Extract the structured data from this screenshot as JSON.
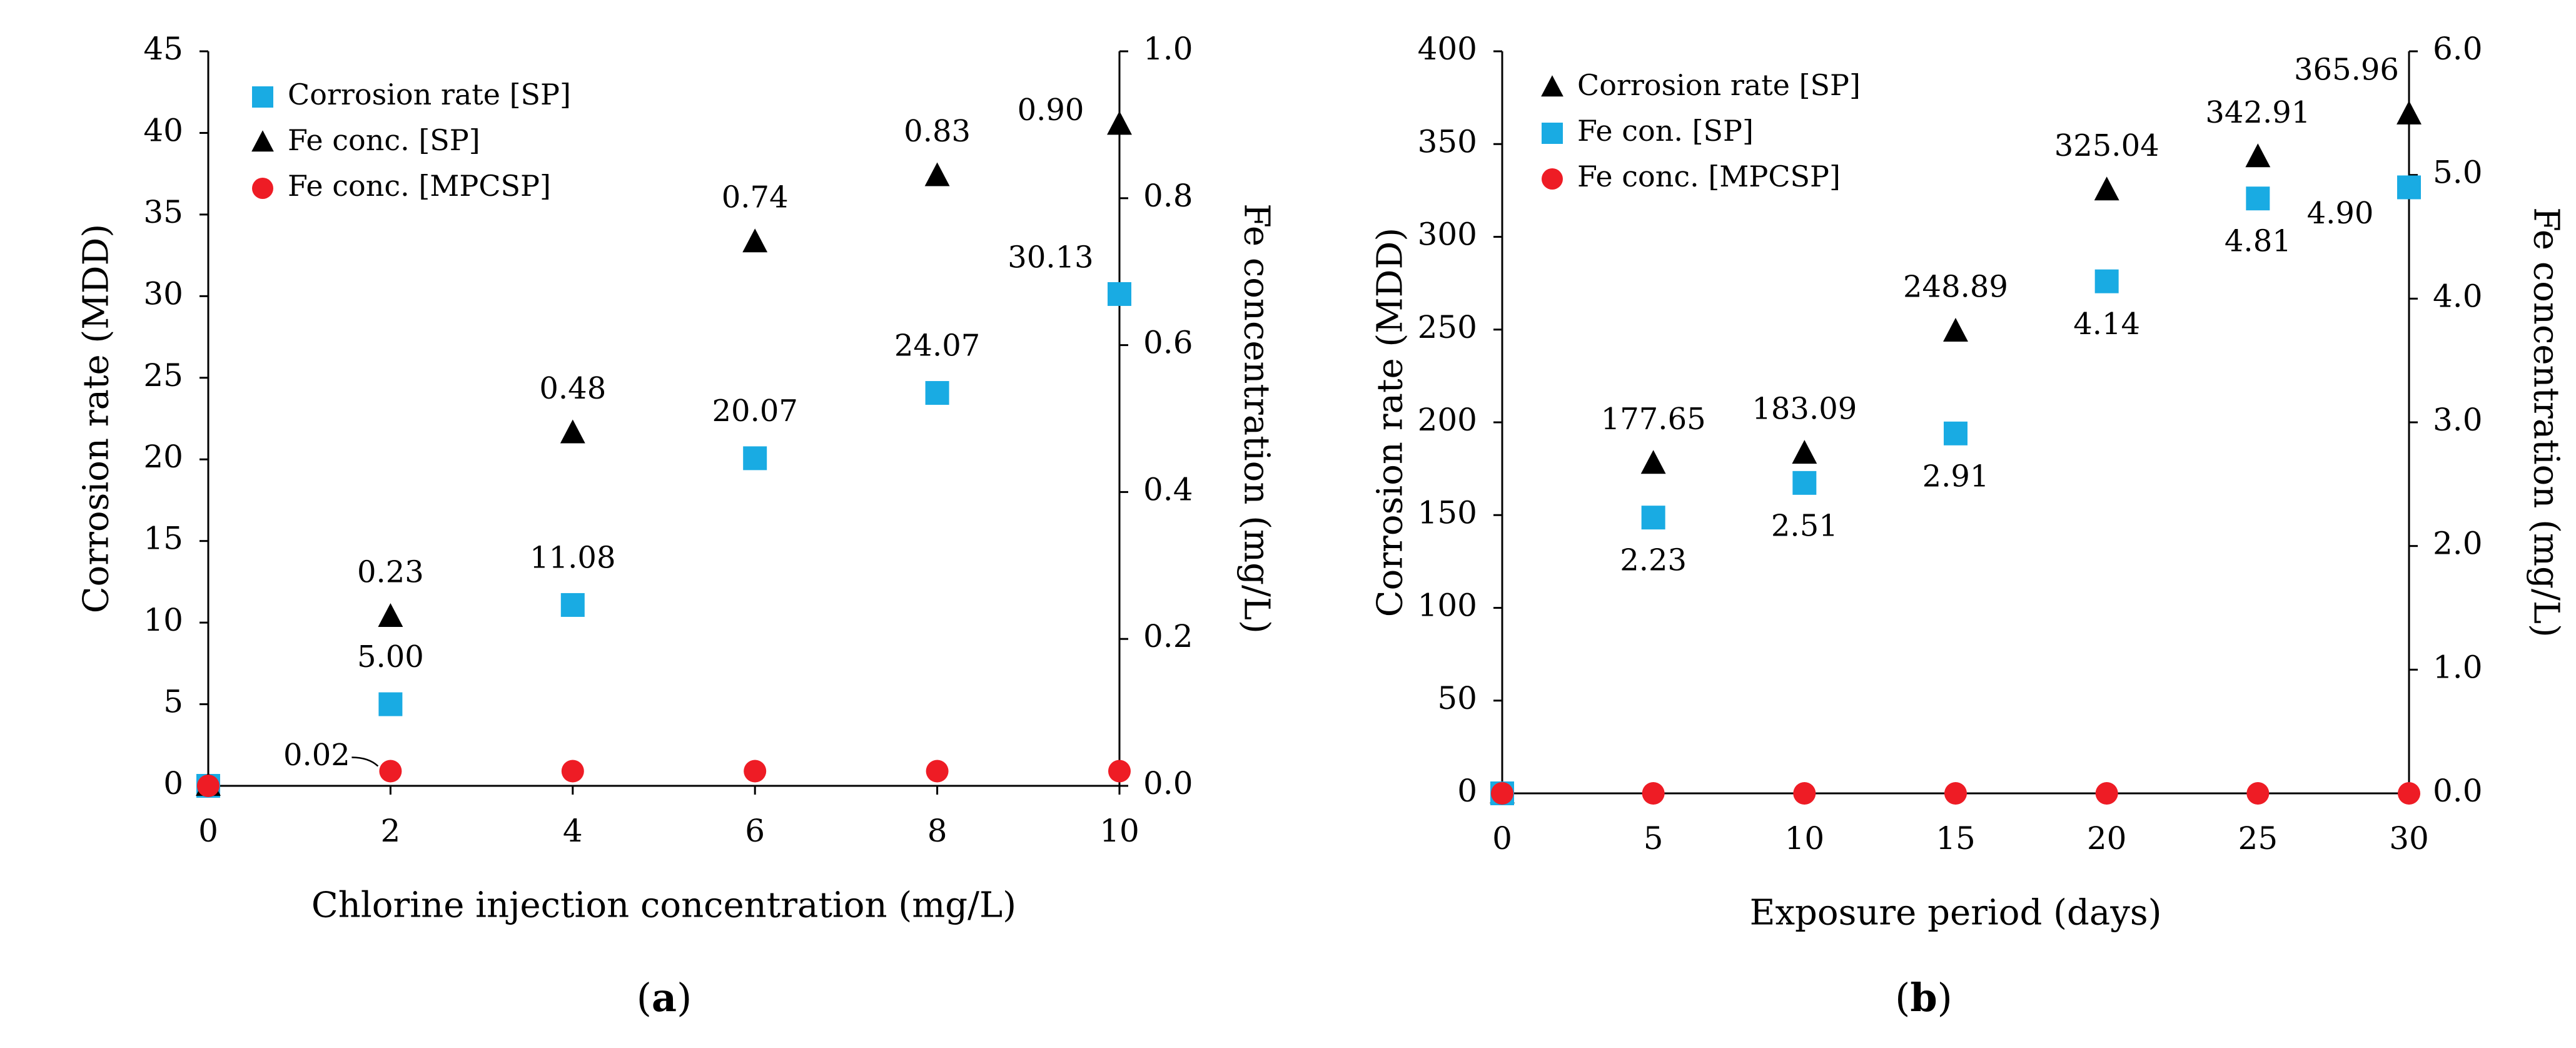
{
  "chart_data": [
    {
      "type": "scatter",
      "panel_label": "a",
      "xlabel": "Chlorine injection concentration (mg/L)",
      "ylabel": "Corrosion rate (MDD)",
      "y2label": "Fe concentration (mg/L)",
      "x": [
        0,
        2,
        4,
        6,
        8,
        10
      ],
      "xlim": [
        0,
        10
      ],
      "xticks": [
        0,
        2,
        4,
        6,
        8,
        10
      ],
      "ylim": [
        0,
        45
      ],
      "yticks": [
        0,
        5,
        10,
        15,
        20,
        25,
        30,
        35,
        40,
        45
      ],
      "y2lim": [
        0,
        1.0
      ],
      "y2ticks": [
        0.0,
        0.2,
        0.4,
        0.6,
        0.8,
        1.0
      ],
      "legend_position": "top-left",
      "series": [
        {
          "name": "Corrosion rate [SP]",
          "marker": "square",
          "color": "#19ABE3",
          "axis": "left",
          "values": [
            0,
            5.0,
            11.08,
            20.07,
            24.07,
            30.13
          ],
          "labels": [
            "",
            "5.00",
            "11.08",
            "20.07",
            "24.07",
            "30.13"
          ]
        },
        {
          "name": "Fe conc. [SP]",
          "marker": "triangle",
          "color": "#000000",
          "axis": "right",
          "values": [
            0,
            0.23,
            0.48,
            0.74,
            0.83,
            0.9
          ],
          "labels": [
            "",
            "0.23",
            "0.48",
            "0.74",
            "0.83",
            "0.90"
          ]
        },
        {
          "name": "Fe conc. [MPCSP]",
          "marker": "circle",
          "color": "#EE1C25",
          "axis": "right",
          "values": [
            0,
            0.02,
            0.02,
            0.02,
            0.02,
            0.02
          ],
          "labels": [
            "",
            "0.02",
            "",
            "",
            "",
            ""
          ]
        }
      ]
    },
    {
      "type": "scatter",
      "panel_label": "b",
      "xlabel": "Exposure period (days)",
      "ylabel": "Corrosion rate (MDD)",
      "y2label": "Fe concentration (mg/L)",
      "x": [
        0,
        5,
        10,
        15,
        20,
        25,
        30
      ],
      "xlim": [
        0,
        30
      ],
      "xticks": [
        0,
        5,
        10,
        15,
        20,
        25,
        30
      ],
      "ylim": [
        0,
        400
      ],
      "yticks": [
        0,
        50,
        100,
        150,
        200,
        250,
        300,
        350,
        400
      ],
      "y2lim": [
        0,
        6.0
      ],
      "y2ticks": [
        "0.0",
        "1.0",
        "2.0",
        "3.0",
        "4.0",
        "5.0",
        "6.0"
      ],
      "legend_position": "top-left",
      "series": [
        {
          "name": "Corrosion rate [SP]",
          "marker": "triangle",
          "color": "#000000",
          "axis": "left",
          "values": [
            0,
            177.65,
            183.09,
            248.89,
            325.04,
            342.91,
            365.96
          ],
          "labels": [
            "",
            "177.65",
            "183.09",
            "248.89",
            "325.04",
            "342.91",
            "365.96"
          ]
        },
        {
          "name": "Fe con. [SP]",
          "marker": "square",
          "color": "#19ABE3",
          "axis": "right",
          "values": [
            0,
            2.23,
            2.51,
            2.91,
            4.14,
            4.81,
            4.9
          ],
          "labels": [
            "",
            "2.23",
            "2.51",
            "2.91",
            "4.14",
            "4.81",
            "4.90"
          ]
        },
        {
          "name": "Fe conc. [MPCSP]",
          "marker": "circle",
          "color": "#EE1C25",
          "axis": "right",
          "values": [
            0,
            0,
            0,
            0,
            0,
            0,
            0
          ],
          "labels": [
            "",
            "",
            "",
            "",
            "",
            "",
            ""
          ]
        }
      ]
    }
  ]
}
